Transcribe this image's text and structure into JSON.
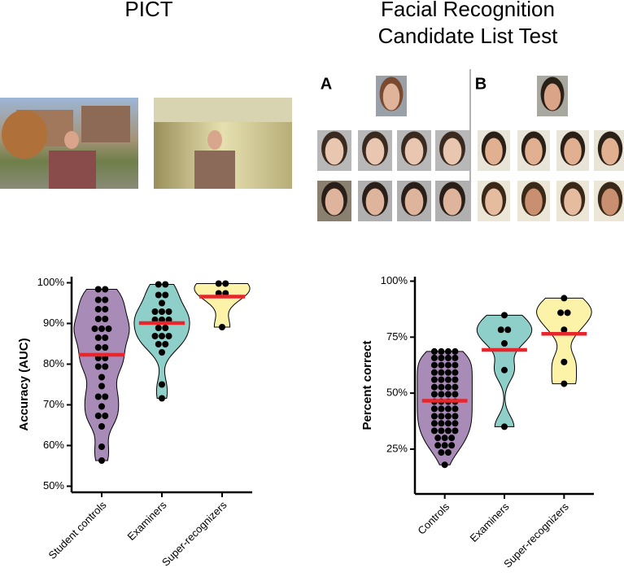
{
  "header": {
    "left_title": "PICT",
    "right_title": [
      "Facial Recognition",
      "Candidate List Test"
    ],
    "panel_a": "A",
    "panel_b": "B"
  },
  "chart_data": [
    {
      "type": "violin",
      "y_label": "Accuracy (AUC)",
      "categories": [
        "Student controls",
        "Examiners",
        "Super-recognizers"
      ],
      "ylim": [
        48.5,
        101.5
      ],
      "yticks": [
        {
          "value": 50,
          "label": "50%"
        },
        {
          "value": 60,
          "label": "60%"
        },
        {
          "value": 70,
          "label": "70%"
        },
        {
          "value": 80,
          "label": "80%"
        },
        {
          "value": 90,
          "label": "90%"
        },
        {
          "value": 100,
          "label": "100%"
        }
      ],
      "median_color": "#e8252b",
      "point_color": "#000000",
      "series": [
        {
          "color": "#a98bb8",
          "median": 82.3,
          "values": [
            98.4,
            98.4,
            95.8,
            95.8,
            93.5,
            93.5,
            91.1,
            91.1,
            88.7,
            88.7,
            88.7,
            86.5,
            86.5,
            84.1,
            84.1,
            81.5,
            81.5,
            79.4,
            79.4,
            76.8,
            74.6,
            72,
            72,
            69.6,
            67.3,
            67.3,
            64.7,
            59.7,
            56.3
          ]
        },
        {
          "color": "#8fcfc9",
          "median": 90.1,
          "values": [
            99.6,
            99.6,
            97,
            97,
            95,
            92.9,
            92.9,
            92.9,
            90.9,
            90.9,
            90.9,
            88.9,
            88.9,
            86.9,
            86.9,
            86.9,
            84.9,
            84.9,
            82.9,
            75,
            71.6
          ]
        },
        {
          "color": "#fdf3a8",
          "median": 96.6,
          "values": [
            99.8,
            99.8,
            97.4,
            97.4,
            89.1
          ]
        }
      ]
    },
    {
      "type": "violin",
      "y_label": "Percent correct",
      "categories": [
        "Controls",
        "Examiners",
        "Super-recognizers"
      ],
      "ylim": [
        5,
        102
      ],
      "yticks": [
        {
          "value": 25,
          "label": "25%"
        },
        {
          "value": 50,
          "label": "50%"
        },
        {
          "value": 75,
          "label": "75%"
        },
        {
          "value": 100,
          "label": "100%"
        }
      ],
      "median_color": "#e8252b",
      "point_color": "#000000",
      "series": [
        {
          "color": "#a98bb8",
          "median": 46.6,
          "values": [
            68.6,
            68.6,
            68.6,
            68.6,
            65.7,
            65.7,
            65.7,
            65.7,
            62.5,
            62.5,
            62.5,
            62.5,
            59.2,
            59.2,
            59.2,
            59.2,
            56,
            56,
            56,
            56,
            52.7,
            52.7,
            52.7,
            52.7,
            49.5,
            49.5,
            49.5,
            49.5,
            46.2,
            46.2,
            46.2,
            46.2,
            43,
            43,
            43,
            43,
            39.7,
            39.7,
            39.7,
            39.7,
            36.5,
            36.5,
            36.5,
            36.5,
            33.2,
            33.2,
            33.2,
            33.2,
            30,
            30,
            30,
            26.7,
            26.7,
            26.7,
            23.5,
            23.5,
            18
          ]
        },
        {
          "color": "#8fcfc9",
          "median": 69.3,
          "values": [
            84.8,
            78.3,
            78.3,
            72.2,
            60.3,
            35
          ]
        },
        {
          "color": "#fdf3a8",
          "median": 76.5,
          "values": [
            92.4,
            85.9,
            85.9,
            78.3,
            63.9,
            54.2
          ]
        }
      ]
    }
  ]
}
